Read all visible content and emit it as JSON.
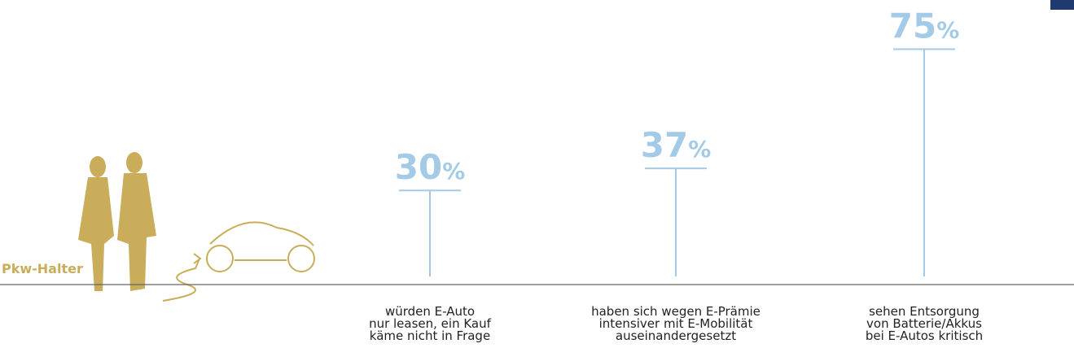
{
  "chart_data": {
    "type": "lollipop",
    "group_label": "Pkw-Halter",
    "unit": "%",
    "color": "#a3cbe8",
    "group_color": "#c9ad5a",
    "categories": [
      [
        "würden E-Auto",
        "nur leasen, ein Kauf",
        "käme nicht in Frage"
      ],
      [
        "haben sich wegen E-Prämie",
        "intensiver mit E-Mobilität",
        "auseinandergesetzt"
      ],
      [
        "sehen Entsorgung",
        "von Batterie/Akkus",
        "bei E-Autos kritisch"
      ]
    ],
    "values": [
      30,
      37,
      75
    ]
  }
}
